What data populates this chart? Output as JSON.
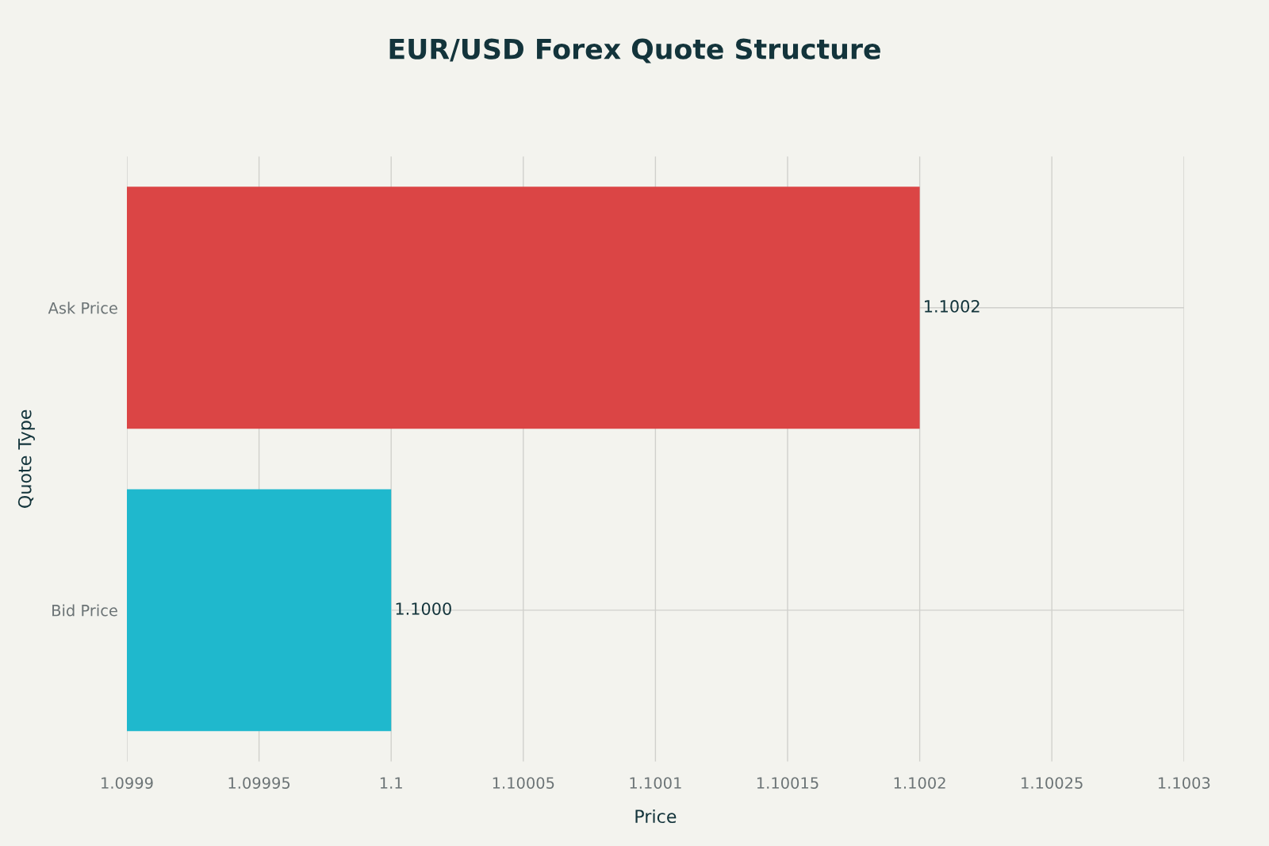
{
  "chart_data": {
    "type": "bar",
    "orientation": "horizontal",
    "title": "EUR/USD Forex Quote Structure",
    "xlabel": "Price",
    "ylabel": "Quote Type",
    "categories": [
      "Ask Price",
      "Bid Price"
    ],
    "values": [
      1.1002,
      1.1
    ],
    "colors": [
      "#db4545",
      "#1fb8cd"
    ],
    "value_labels": [
      "1.1002",
      "1.1000"
    ],
    "xlim": [
      1.0999,
      1.1003
    ],
    "xticks": [
      1.0999,
      1.09995,
      1.1,
      1.10005,
      1.1001,
      1.10015,
      1.1002,
      1.10025,
      1.1003
    ],
    "grid": true,
    "legend": false
  }
}
